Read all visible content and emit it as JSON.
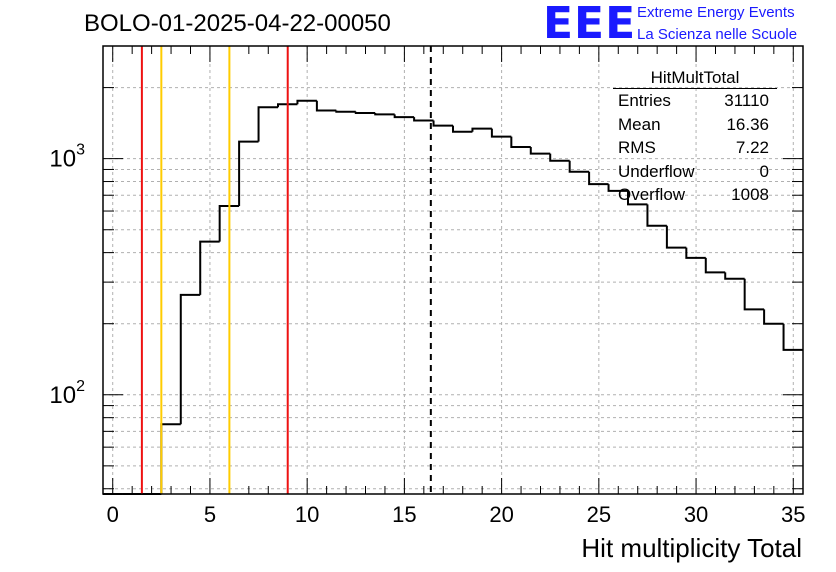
{
  "title": "BOLO-01-2025-04-22-00050",
  "logo": {
    "mark": "EEE",
    "line1": "Extreme Energy Events",
    "line2": "La Scienza nelle Scuole"
  },
  "stats": {
    "name": "HitMultTotal",
    "rows": [
      {
        "label": "Entries",
        "value": "31110"
      },
      {
        "label": "Mean",
        "value": "16.36"
      },
      {
        "label": "RMS",
        "value": "7.22"
      },
      {
        "label": "Underflow",
        "value": "0"
      },
      {
        "label": "Overflow",
        "value": "1008"
      }
    ]
  },
  "colors": {
    "red_line": "#ee1111",
    "yellow_line": "#ffcc00",
    "histogram": "#000000",
    "grid": "#b0b0b0",
    "logo": "#1a1aff"
  },
  "chart_data": {
    "type": "histogram",
    "title": "BOLO-01-2025-04-22-00050",
    "xlabel": "Hit multiplicity Total",
    "ylabel": "",
    "xlim": [
      -0.5,
      35.5
    ],
    "ylim": [
      38,
      3000
    ],
    "yscale": "log",
    "grid": true,
    "x_ticks": [
      0,
      5,
      10,
      15,
      20,
      25,
      30,
      35
    ],
    "y_tick_labels": [
      {
        "value": 100,
        "base": "10",
        "exp": "2"
      },
      {
        "value": 1000,
        "base": "10",
        "exp": "3"
      }
    ],
    "bin_edges_start": -0.5,
    "bin_width": 1,
    "counts": [
      0,
      0,
      0,
      75,
      265,
      445,
      630,
      1180,
      1650,
      1700,
      1760,
      1600,
      1580,
      1560,
      1540,
      1500,
      1450,
      1380,
      1300,
      1340,
      1240,
      1120,
      1050,
      980,
      880,
      780,
      730,
      640,
      520,
      420,
      380,
      330,
      310,
      230,
      200,
      155
    ],
    "vertical_lines": [
      {
        "x": 1.5,
        "color": "red",
        "style": "solid"
      },
      {
        "x": 2.5,
        "color": "yellow",
        "style": "solid"
      },
      {
        "x": 6.0,
        "color": "yellow",
        "style": "solid"
      },
      {
        "x": 9.0,
        "color": "red",
        "style": "solid"
      },
      {
        "x": 16.36,
        "color": "black",
        "style": "dashed"
      }
    ],
    "legend": "top-right"
  }
}
